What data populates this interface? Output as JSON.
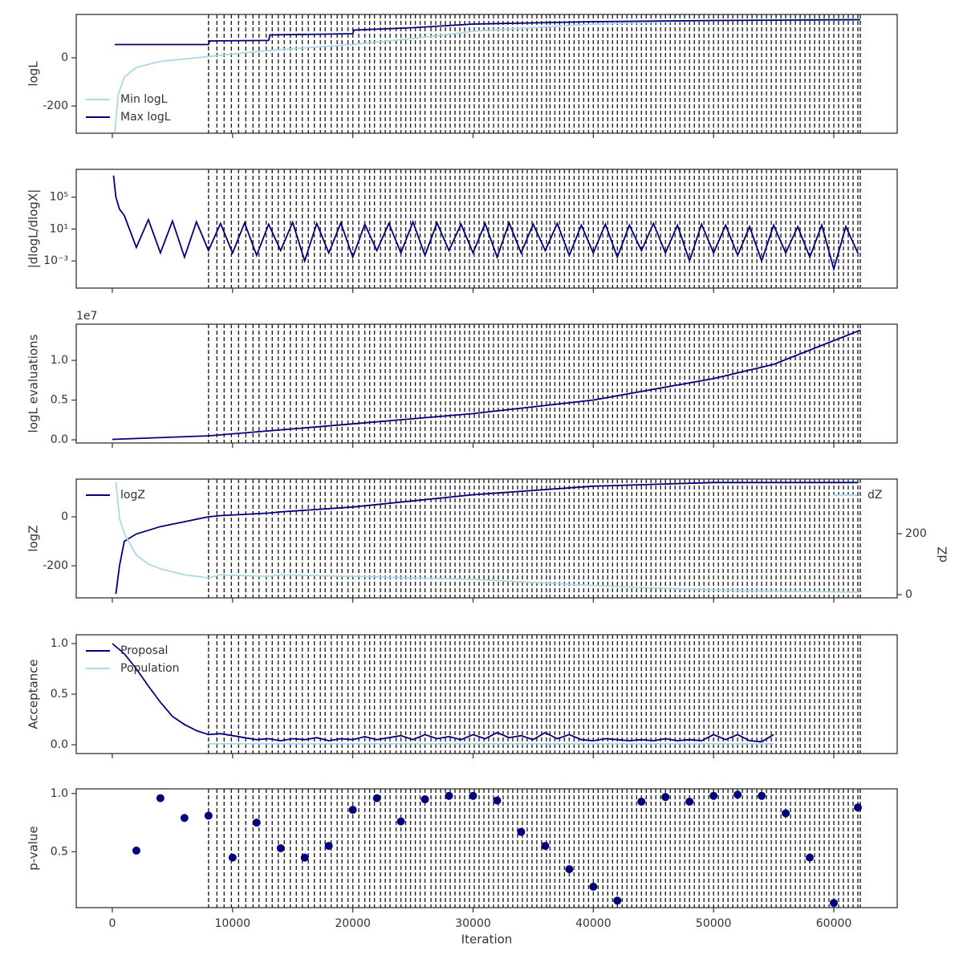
{
  "chart_data": [
    {
      "type": "line",
      "ylabel": "logL",
      "ylim": [
        -313,
        180
      ],
      "yticks": [
        -200,
        0
      ],
      "legend": "lower left",
      "x": [
        200,
        500,
        1000,
        2000,
        4000,
        8000,
        8100,
        13000,
        13100,
        20000,
        20100,
        25000,
        30000,
        35000,
        40000,
        50000,
        62200
      ],
      "series": [
        {
          "name": "Min logL",
          "color": "#add8e6",
          "values": [
            -310,
            -150,
            -80,
            -40,
            -15,
            5,
            6,
            30,
            31,
            55,
            56,
            80,
            110,
            125,
            140,
            155,
            162
          ]
        },
        {
          "name": "Max logL",
          "color": "#00007f",
          "values": [
            55,
            55,
            55,
            55,
            55,
            55,
            70,
            72,
            95,
            100,
            115,
            125,
            140,
            145,
            150,
            155,
            158
          ]
        }
      ],
      "vlines": [
        8000,
        8700,
        9300,
        9900,
        10500,
        11100,
        11700,
        12200,
        12800,
        13300,
        13800,
        14300,
        14800,
        15300,
        15800,
        16300,
        16800,
        17300,
        17700,
        18200,
        18700,
        19100,
        19600,
        20000,
        20500,
        21000,
        21400,
        21800,
        22300,
        22700,
        23100,
        23600,
        24000,
        24400,
        24800,
        25200,
        25600,
        26000,
        26500,
        26900,
        27300,
        27700,
        28100,
        28500,
        28900,
        29300,
        29700,
        30100,
        30500,
        30900,
        31300,
        31700,
        32100,
        32500,
        32900,
        33300,
        33700,
        34100,
        34500,
        34900,
        35300,
        35700,
        36100,
        36400,
        36800,
        37200,
        37600,
        38000,
        38400,
        38800,
        39200,
        39600,
        40000,
        40400,
        40800,
        41200,
        41600,
        42000,
        42400,
        42800,
        43200,
        43600,
        44000,
        44400,
        44800,
        45200,
        45600,
        46000,
        46400,
        46800,
        47200,
        47600,
        48000,
        48400,
        48800,
        49200,
        49600,
        50000,
        50400,
        50800,
        51200,
        51600,
        52000,
        52400,
        52800,
        53200,
        53600,
        54000,
        54400,
        54800,
        55200,
        55600,
        56000,
        56400,
        56800,
        57200,
        57600,
        58000,
        58400,
        58800,
        59200,
        59600,
        60000,
        60400,
        60800,
        61200,
        61600,
        62000,
        62200
      ]
    },
    {
      "type": "line",
      "ylabel": "|dlogL/dlogX|",
      "log_scale": true,
      "ylim": [
        4e-07,
        300000000.0
      ],
      "yticks": [
        {
          "value": 0.001,
          "label": "10⁻³"
        },
        {
          "value": 10,
          "label": "10¹"
        },
        {
          "value": 100000,
          "label": "10⁵"
        }
      ],
      "x": [
        100,
        300,
        600,
        1000,
        2000,
        3000,
        4000,
        5000,
        6000,
        7000,
        8000,
        9000,
        10000,
        11000,
        12000,
        13000,
        14000,
        15000,
        16000,
        17000,
        18000,
        19000,
        20000,
        21000,
        22000,
        23000,
        24000,
        25000,
        26000,
        27000,
        28000,
        29000,
        30000,
        31000,
        32000,
        33000,
        34000,
        35000,
        36000,
        37000,
        38000,
        39000,
        40000,
        41000,
        42000,
        43000,
        44000,
        45000,
        46000,
        47000,
        48000,
        49000,
        50000,
        51000,
        52000,
        53000,
        54000,
        55000,
        56000,
        57000,
        58000,
        59000,
        60000,
        61000,
        62000
      ],
      "series": [
        {
          "name": "|dlogL/dlogX|",
          "color": "#00007f",
          "values": [
            50000000,
            100000,
            3000,
            500,
            0.05,
            150,
            0.01,
            100,
            0.003,
            80,
            0.02,
            50,
            0.01,
            60,
            0.005,
            40,
            0.02,
            70,
            0.001,
            50,
            0.01,
            60,
            0.003,
            40,
            0.02,
            50,
            0.01,
            80,
            0.005,
            60,
            0.02,
            40,
            0.01,
            50,
            0.003,
            60,
            0.01,
            40,
            0.02,
            50,
            0.005,
            30,
            0.01,
            40,
            0.003,
            30,
            0.02,
            50,
            0.01,
            30,
            0.001,
            40,
            0.01,
            30,
            0.005,
            20,
            0.001,
            30,
            0.01,
            20,
            0.003,
            30,
            0.0001,
            20,
            0.01
          ]
        }
      ]
    },
    {
      "type": "line",
      "ylabel": "logL evaluations",
      "offset_label": "1e7",
      "ylim": [
        -400000,
        14550000
      ],
      "yticks": [
        {
          "value": 0,
          "label": "0.0"
        },
        {
          "value": 5000000,
          "label": "0.5"
        },
        {
          "value": 10000000,
          "label": "1.0"
        }
      ],
      "x": [
        0,
        8000,
        20000,
        30000,
        40000,
        50000,
        55000,
        62200
      ],
      "series": [
        {
          "name": "logL evaluations",
          "color": "#00007f",
          "values": [
            50000,
            500000,
            2000000,
            3300000,
            5000000,
            7700000,
            9500000,
            13800000
          ]
        }
      ]
    },
    {
      "type": "line",
      "ylabel": "logZ",
      "y2label": "dZ",
      "ylim": [
        -331,
        154
      ],
      "yticks": [
        -200,
        0
      ],
      "y2lim": [
        -10.5,
        379
      ],
      "y2ticks": [
        0,
        200
      ],
      "legend": "upper left",
      "legend2": "upper right",
      "x": [
        300,
        600,
        1000,
        2000,
        3000,
        4000,
        6000,
        8000,
        9000,
        13000,
        14000,
        20000,
        30000,
        40000,
        50000,
        62000
      ],
      "series": [
        {
          "name": "logZ",
          "color": "#00007f",
          "values": [
            -315,
            -200,
            -100,
            -70,
            -55,
            -40,
            -20,
            0,
            5,
            15,
            20,
            40,
            90,
            125,
            140,
            140
          ]
        },
        {
          "name": "dZ",
          "color": "#add8e6",
          "axis": "y2",
          "values": [
            370,
            250,
            200,
            130,
            100,
            85,
            65,
            55,
            65,
            60,
            65,
            60,
            50,
            30,
            15,
            8
          ]
        }
      ]
    },
    {
      "type": "line",
      "ylabel": "Acceptance",
      "ylim": [
        -0.087,
        1.087
      ],
      "yticks": [
        {
          "value": 0,
          "label": "0.0"
        },
        0.5,
        {
          "value": 1,
          "label": "1.0"
        }
      ],
      "legend": "upper left",
      "x": [
        0,
        1000,
        2000,
        3000,
        4000,
        5000,
        6000,
        7000,
        8000,
        9000,
        10000,
        11000,
        12000,
        13000,
        14000,
        15000,
        16000,
        17000,
        18000,
        19000,
        20000,
        21000,
        22000,
        23000,
        24000,
        25000,
        26000,
        27000,
        28000,
        29000,
        30000,
        31000,
        32000,
        33000,
        34000,
        35000,
        36000,
        37000,
        38000,
        39000,
        40000,
        41000,
        42000,
        43000,
        44000,
        45000,
        46000,
        47000,
        48000,
        49000,
        50000,
        51000,
        52000,
        53000,
        54000,
        55000
      ],
      "series": [
        {
          "name": "Proposal",
          "color": "#00007f",
          "values": [
            1.0,
            0.9,
            0.75,
            0.58,
            0.42,
            0.28,
            0.2,
            0.14,
            0.1,
            0.11,
            0.09,
            0.07,
            0.05,
            0.06,
            0.04,
            0.06,
            0.05,
            0.07,
            0.04,
            0.06,
            0.05,
            0.08,
            0.05,
            0.07,
            0.09,
            0.05,
            0.1,
            0.06,
            0.08,
            0.05,
            0.1,
            0.06,
            0.12,
            0.07,
            0.09,
            0.05,
            0.12,
            0.06,
            0.1,
            0.05,
            0.04,
            0.06,
            0.05,
            0.04,
            0.05,
            0.04,
            0.06,
            0.04,
            0.05,
            0.04,
            0.1,
            0.05,
            0.1,
            0.04,
            0.03,
            0.1
          ]
        },
        {
          "name": "Population",
          "color": "#add8e6",
          "values": [
            null,
            null,
            null,
            null,
            null,
            null,
            null,
            null,
            0.01,
            0.01,
            0.01,
            0.01,
            0.01,
            0.01,
            0.01,
            0.01,
            0.01,
            0.01,
            0.01,
            0.01,
            0.01,
            0.01,
            0.01,
            0.01,
            0.01,
            0.01,
            0.01,
            0.01,
            0.01,
            0.01,
            0.01,
            0.01,
            0.01,
            0.01,
            0.01,
            0.01,
            0.01,
            0.01,
            0.01,
            0.01,
            0.01,
            0.01,
            0.01,
            0.01,
            0.01,
            0.01,
            0.01,
            0.01,
            0.01,
            0.01,
            0.01,
            0.01,
            0.01,
            0.01,
            0.01,
            0.01
          ]
        }
      ]
    },
    {
      "type": "scatter",
      "ylabel": "p-value",
      "xlabel": "Iteration",
      "ylim": [
        0.02,
        1.04
      ],
      "yticks": [
        0.5,
        {
          "value": 1,
          "label": "1.0"
        }
      ],
      "xlim": [
        -3000,
        65270
      ],
      "xticks": [
        0,
        10000,
        20000,
        30000,
        40000,
        50000,
        60000
      ],
      "x": [
        2000,
        4000,
        6000,
        8000,
        10000,
        12000,
        14000,
        16000,
        18000,
        20000,
        22000,
        24000,
        26000,
        28000,
        30000,
        32000,
        34000,
        36000,
        38000,
        40000,
        42000,
        44000,
        46000,
        48000,
        50000,
        52000,
        54000,
        56000,
        58000,
        60000,
        62000
      ],
      "series": [
        {
          "name": "p-value",
          "color": "#00007f",
          "values": [
            0.51,
            0.96,
            0.79,
            0.81,
            0.45,
            0.75,
            0.53,
            0.45,
            0.55,
            0.86,
            0.96,
            0.76,
            0.95,
            0.98,
            0.98,
            0.94,
            0.67,
            0.55,
            0.35,
            0.2,
            0.08,
            0.93,
            0.97,
            0.93,
            0.98,
            0.99,
            0.98,
            0.83,
            0.45,
            0.06,
            0.88
          ]
        }
      ]
    }
  ]
}
